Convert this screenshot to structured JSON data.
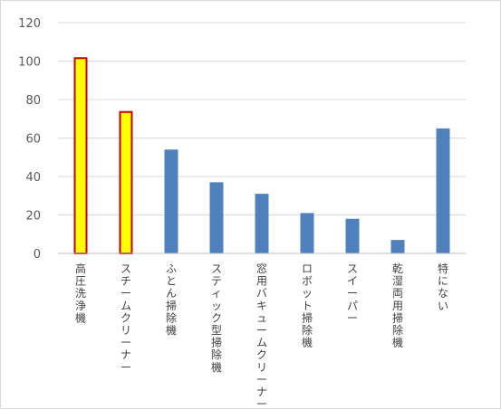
{
  "chart_data": {
    "type": "bar",
    "categories": [
      "高圧洗浄機",
      "スチームクリーナー",
      "ふとん掃除機",
      "スティック型掃除機",
      "窓用バキュームクリーナー",
      "ロボット掃除機",
      "スイーパー",
      "乾湿両用掃除機",
      "特にない"
    ],
    "values": [
      102,
      74,
      54,
      37,
      31,
      21,
      18,
      7,
      65
    ],
    "highlighted": [
      true,
      true,
      false,
      false,
      false,
      false,
      false,
      false,
      false
    ],
    "ylim": [
      0,
      120
    ],
    "yticks": [
      0,
      20,
      40,
      60,
      80,
      100,
      120
    ],
    "grid": true,
    "legend": "none",
    "colors": {
      "default_bar": "#4f81bd",
      "highlight_fill": "#ffff00",
      "highlight_stroke": "#c00000",
      "gridline": "#d9d9d9",
      "axis": "#bfbfbf"
    }
  }
}
